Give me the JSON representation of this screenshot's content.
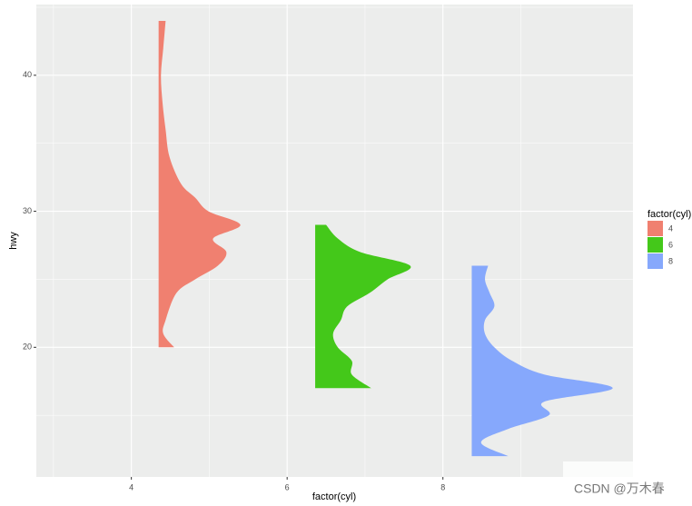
{
  "chart_data": {
    "type": "half-violin",
    "x_label": "factor(cyl)",
    "y_label": "hwy",
    "xlim": [
      2.78,
      10.44
    ],
    "ylim": [
      10.47,
      45.2
    ],
    "xticks": [
      4,
      6,
      8
    ],
    "yticks": [
      20,
      30,
      40
    ],
    "grid": true,
    "legend_title": "factor(cyl)",
    "legend_position": "right",
    "series": [
      {
        "name": "4",
        "color": "#f08070",
        "x": 4.35,
        "y": [
          44,
          42,
          40,
          38,
          36,
          34,
          32,
          31,
          30,
          29,
          28,
          27,
          26,
          25,
          24,
          22,
          21,
          20
        ],
        "width": [
          0.09,
          0.06,
          0.03,
          0.05,
          0.09,
          0.14,
          0.29,
          0.47,
          0.64,
          1.05,
          0.7,
          0.87,
          0.76,
          0.47,
          0.23,
          0.09,
          0.06,
          0.2
        ]
      },
      {
        "name": "6",
        "color": "#44c81a",
        "x": 6.36,
        "y": [
          29,
          28,
          27,
          26,
          25,
          24,
          23,
          22,
          21,
          20,
          19,
          18,
          17
        ],
        "width": [
          0.14,
          0.29,
          0.58,
          1.22,
          0.93,
          0.7,
          0.41,
          0.33,
          0.23,
          0.29,
          0.47,
          0.47,
          0.72
        ]
      },
      {
        "name": "8",
        "color": "#86a8fc",
        "x": 8.37,
        "y": [
          26,
          25,
          24,
          23,
          22,
          21,
          20,
          19,
          18,
          17,
          16,
          15,
          14,
          13,
          12
        ],
        "width": [
          0.21,
          0.17,
          0.23,
          0.29,
          0.17,
          0.17,
          0.29,
          0.52,
          0.93,
          1.81,
          0.93,
          0.99,
          0.47,
          0.12,
          0.47
        ]
      }
    ]
  },
  "watermark": "CSDN @万木春"
}
